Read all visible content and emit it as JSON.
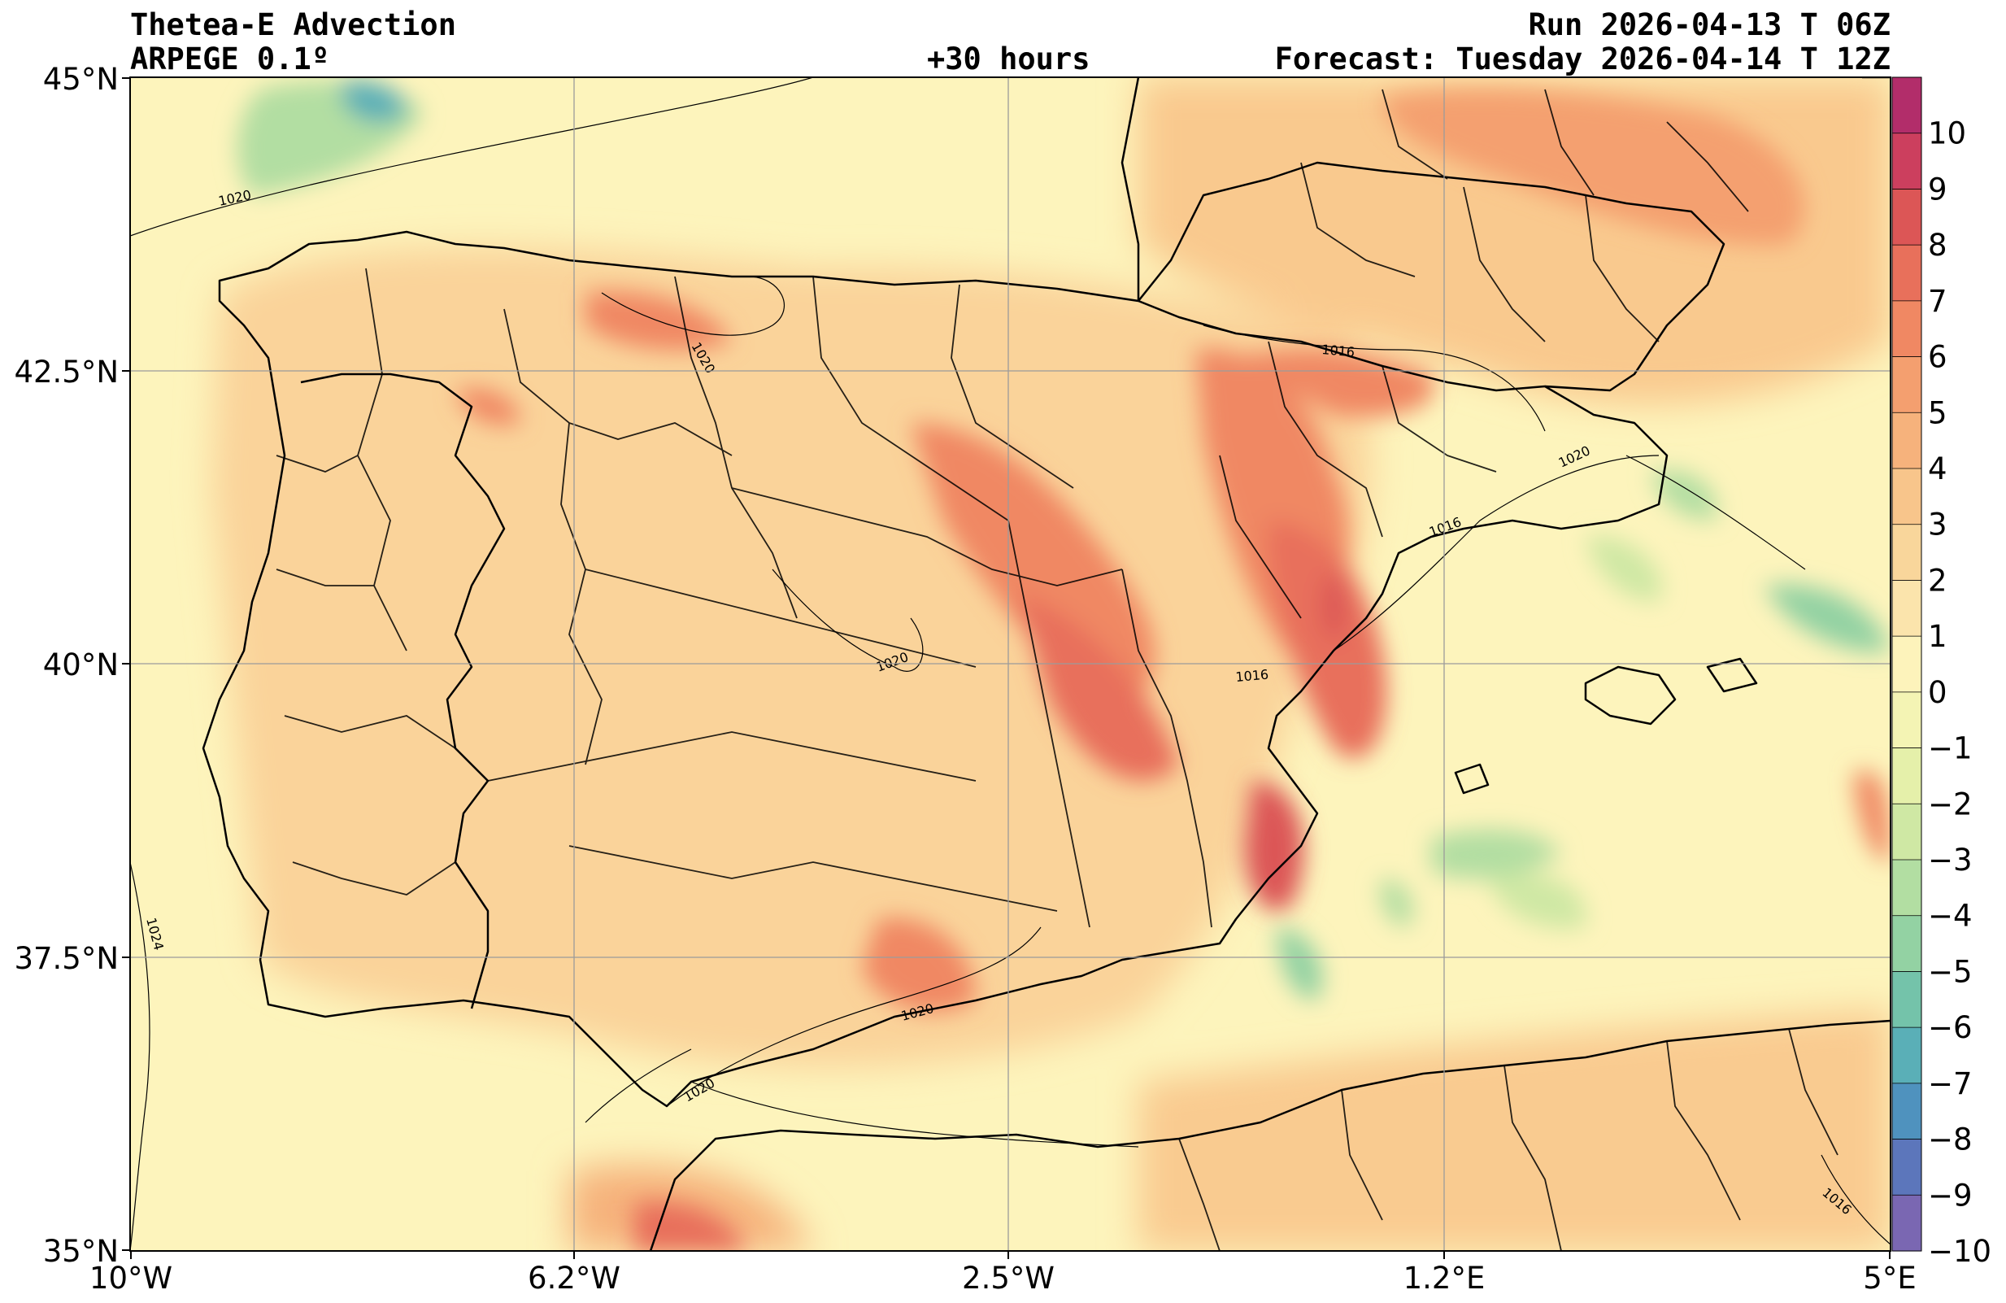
{
  "header": {
    "title": "Thetea-E Advection",
    "model": "ARPEGE 0.1º",
    "lead_time": "+30 hours",
    "run": "Run 2026-04-13 T 06Z",
    "forecast": "Forecast: Tuesday 2026-04-14 T 12Z"
  },
  "axes": {
    "lat_labels": [
      "45°N",
      "42.5°N",
      "40°N",
      "37.5°N",
      "35°N"
    ],
    "lon_labels": [
      "10°W",
      "6.2°W",
      "2.5°W",
      "1.2°E",
      "5°E"
    ]
  },
  "colorbar": {
    "labels": [
      "10",
      "9",
      "8",
      "7",
      "6",
      "5",
      "4",
      "3",
      "2",
      "1",
      "0",
      "−1",
      "−2",
      "−3",
      "−4",
      "−5",
      "−6",
      "−7",
      "−8",
      "−9",
      "−10"
    ],
    "colors": [
      "#b22d6a",
      "#cc3f5e",
      "#dc5656",
      "#e8705b",
      "#f08863",
      "#f49f6f",
      "#f6b27c",
      "#f8c58b",
      "#f9d69b",
      "#fbe4ac",
      "#fdf3bb",
      "#f4f4b4",
      "#e5f0aa",
      "#cfe8a4",
      "#b2dea2",
      "#93d2a3",
      "#74c3aa",
      "#5aafb7",
      "#4f92be",
      "#5c76bb",
      "#7a67b2"
    ]
  },
  "isobars": [
    "1020",
    "1020",
    "1020",
    "1020",
    "1016",
    "1016",
    "1016",
    "1024",
    "1020",
    "1020",
    "1016"
  ],
  "colors": {
    "ocean_base": "#fdf5bd",
    "land_base": "#fbdba0",
    "strong_warm": "#e8705b",
    "cool": "#93d2a3",
    "cold": "#4f92be"
  }
}
